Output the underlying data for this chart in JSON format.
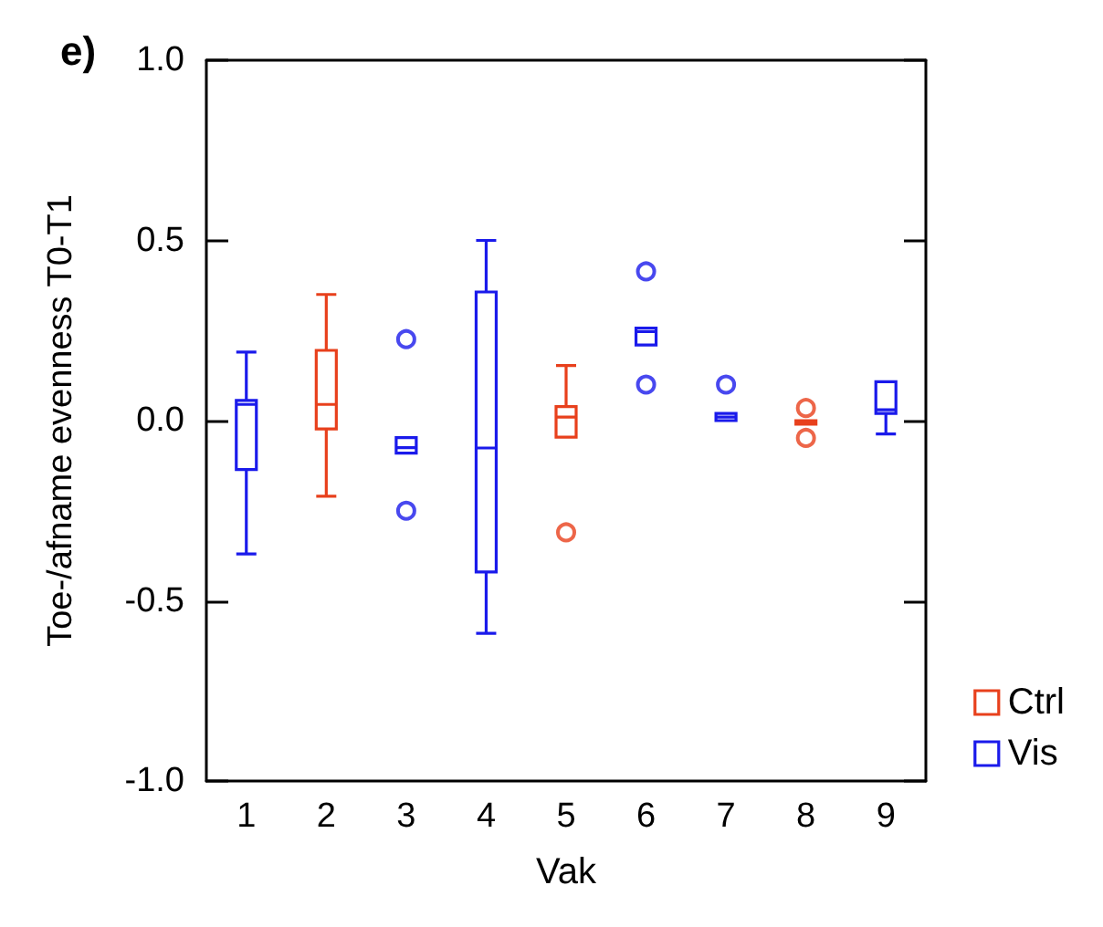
{
  "chart_data": {
    "type": "box",
    "title": "e)",
    "xlabel": "Vak",
    "ylabel": "Toe-/afname evenness T0-T1",
    "categories": [
      "1",
      "2",
      "3",
      "4",
      "5",
      "6",
      "7",
      "8",
      "9"
    ],
    "ylim": [
      -1,
      1
    ],
    "yticks": [
      {
        "value": -1,
        "label": "-1.0"
      },
      {
        "value": -0.5,
        "label": "-0.5"
      },
      {
        "value": 0,
        "label": "0.0"
      },
      {
        "value": 0.5,
        "label": "0.5"
      },
      {
        "value": 1,
        "label": "1.0"
      }
    ],
    "grid": false,
    "legend": "bottom right",
    "series": [
      {
        "name": "Ctrl",
        "color": "#e8401c",
        "boxes": [
          null,
          {
            "low": -0.21,
            "q1": -0.023,
            "median": 0.045,
            "q3": 0.195,
            "high": 0.35
          },
          null,
          null,
          {
            "low": -0.046,
            "q1": -0.046,
            "median": 0.01,
            "q3": 0.039,
            "high": 0.153,
            "outliers": [
              -0.31
            ]
          },
          null,
          null,
          {
            "low": -0.01,
            "q1": -0.01,
            "median": -0.005,
            "q3": 0.0,
            "high": 0.0,
            "outliers": [
              0.035,
              -0.048
            ]
          },
          null
        ]
      },
      {
        "name": "Vis",
        "color": "#1a1aeb",
        "boxes": [
          {
            "low": -0.37,
            "q1": -0.136,
            "median": 0.045,
            "q3": 0.056,
            "high": 0.19
          },
          null,
          {
            "low": -0.09,
            "q1": -0.09,
            "median": -0.075,
            "q3": -0.047,
            "high": -0.047,
            "outliers": [
              0.226,
              -0.25
            ]
          },
          {
            "low": -0.59,
            "q1": -0.42,
            "median": -0.076,
            "q3": 0.357,
            "high": 0.5
          },
          null,
          {
            "low": 0.21,
            "q1": 0.21,
            "median": 0.247,
            "q3": 0.257,
            "high": 0.257,
            "outliers": [
              0.414,
              0.1
            ]
          },
          {
            "low": 0.0,
            "q1": 0.0,
            "median": 0.01,
            "q3": 0.02,
            "high": 0.02,
            "outliers": [
              0.1
            ]
          },
          null,
          {
            "low": -0.037,
            "q1": 0.02,
            "median": 0.03,
            "q3": 0.108,
            "high": 0.108
          }
        ]
      }
    ]
  }
}
